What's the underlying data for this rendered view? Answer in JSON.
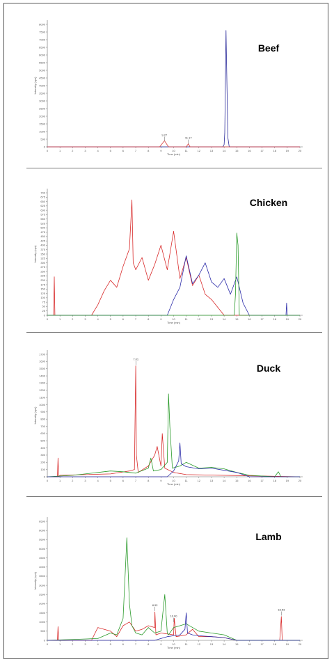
{
  "chart_data": [
    {
      "type": "line",
      "title": "Beef",
      "xlabel": "Time (min)",
      "ylabel": "Intensity (cps)",
      "xlim": [
        0,
        20
      ],
      "ylim": [
        0,
        8000
      ],
      "xticks": [
        "0",
        "1",
        "2",
        "3",
        "4",
        "5",
        "6",
        "7",
        "8",
        "9",
        "10",
        "11",
        "12",
        "13",
        "14",
        "15",
        "16",
        "17",
        "18",
        "19",
        "20"
      ],
      "yticks": [
        "0",
        "500",
        "1000",
        "1500",
        "2000",
        "2500",
        "3000",
        "3500",
        "4000",
        "4500",
        "5000",
        "5500",
        "6000",
        "6500",
        "7000",
        "7500",
        "8000"
      ],
      "annotations": [
        {
          "x": 9.27,
          "y": 380,
          "label": "9.27"
        },
        {
          "x": 11.17,
          "y": 200,
          "label": "11.17"
        }
      ],
      "series": [
        {
          "color": "#2a2a9a",
          "x": [
            0,
            13.9,
            14.0,
            14.05,
            14.1,
            14.15,
            14.2,
            14.3,
            14.4,
            20
          ],
          "y": [
            0,
            0,
            150,
            900,
            4200,
            7600,
            5200,
            600,
            0,
            0
          ]
        },
        {
          "color": "#d83a3a",
          "x": [
            0,
            8.9,
            9.27,
            9.6,
            11.0,
            11.17,
            11.3,
            20
          ],
          "y": [
            0,
            0,
            400,
            0,
            0,
            200,
            0,
            0
          ]
        }
      ]
    },
    {
      "type": "line",
      "title": "Chicken",
      "xlabel": "Time (min)",
      "ylabel": "Intensity (cps)",
      "xlim": [
        0,
        20
      ],
      "ylim": [
        0,
        700
      ],
      "xticks": [
        "0",
        "1",
        "2",
        "3",
        "4",
        "5",
        "6",
        "7",
        "8",
        "9",
        "10",
        "11",
        "12",
        "13",
        "14",
        "15",
        "16",
        "17",
        "18",
        "19",
        "20"
      ],
      "yticks": [
        "0",
        "25",
        "50",
        "75",
        "100",
        "125",
        "150",
        "175",
        "200",
        "225",
        "250",
        "275",
        "300",
        "325",
        "350",
        "375",
        "400",
        "425",
        "450",
        "475",
        "500",
        "525",
        "550",
        "575",
        "600",
        "625",
        "650",
        "675",
        "700"
      ],
      "series": [
        {
          "color": "#d82a2a",
          "x": [
            0,
            0.5,
            0.55,
            0.6,
            1.0,
            3.5,
            4.0,
            4.5,
            5.0,
            5.5,
            6.0,
            6.5,
            6.7,
            6.8,
            7.0,
            7.5,
            8.0,
            8.5,
            9.0,
            9.5,
            10.0,
            10.5,
            11.0,
            11.5,
            12.0,
            12.5,
            13.0,
            14.0,
            20
          ],
          "y": [
            0,
            0,
            220,
            0,
            0,
            0,
            60,
            140,
            200,
            160,
            280,
            380,
            660,
            300,
            260,
            330,
            200,
            290,
            400,
            260,
            480,
            210,
            330,
            170,
            230,
            120,
            90,
            0,
            0
          ]
        },
        {
          "color": "#2a2aa8",
          "x": [
            0,
            9.5,
            10.0,
            10.5,
            11.0,
            11.5,
            12.0,
            12.5,
            13.0,
            13.5,
            14.0,
            14.5,
            15.0,
            15.5,
            16.0,
            18.9,
            18.95,
            19.0,
            20
          ],
          "y": [
            0,
            0,
            90,
            160,
            340,
            180,
            230,
            300,
            190,
            160,
            210,
            120,
            220,
            70,
            0,
            0,
            70,
            0,
            0
          ]
        },
        {
          "color": "#2a9a2a",
          "x": [
            0,
            14.8,
            14.9,
            15.0,
            15.1,
            15.2,
            20
          ],
          "y": [
            0,
            0,
            120,
            470,
            400,
            0,
            0
          ]
        }
      ]
    },
    {
      "type": "line",
      "title": "Duck",
      "xlabel": "Time (min)",
      "ylabel": "Intensity (cps)",
      "xlim": [
        0,
        20
      ],
      "ylim": [
        0,
        1700
      ],
      "xticks": [
        "0",
        "1",
        "2",
        "3",
        "4",
        "5",
        "6",
        "7",
        "8",
        "9",
        "10",
        "11",
        "12",
        "13",
        "14",
        "15",
        "16",
        "17",
        "18",
        "19",
        "20"
      ],
      "yticks": [
        "0",
        "100",
        "200",
        "300",
        "400",
        "500",
        "600",
        "700",
        "800",
        "900",
        "1000",
        "1100",
        "1200",
        "1300",
        "1400",
        "1500",
        "1600",
        "1700"
      ],
      "annotations": [
        {
          "x": 7.01,
          "y": 1550,
          "label": "7.01"
        }
      ],
      "series": [
        {
          "color": "#d82a2a",
          "x": [
            0,
            0.8,
            0.85,
            0.9,
            1.0,
            5.0,
            6.5,
            6.9,
            7.0,
            7.05,
            7.2,
            8.0,
            8.5,
            8.7,
            9.0,
            9.1,
            9.3,
            10.0,
            11.0,
            20
          ],
          "y": [
            0,
            0,
            260,
            0,
            20,
            40,
            80,
            100,
            1540,
            300,
            60,
            150,
            300,
            420,
            150,
            600,
            120,
            60,
            30,
            0
          ]
        },
        {
          "color": "#2a9a2a",
          "x": [
            0,
            2,
            3,
            4,
            5,
            6,
            7,
            8,
            8.2,
            8.4,
            9.0,
            9.5,
            9.6,
            9.7,
            9.9,
            10.5,
            11.0,
            12.0,
            13.0,
            14.0,
            15.0,
            16.0,
            18.0,
            18.3,
            18.5,
            20
          ],
          "y": [
            0,
            20,
            40,
            60,
            80,
            70,
            50,
            120,
            260,
            80,
            100,
            200,
            1150,
            700,
            120,
            150,
            200,
            120,
            130,
            110,
            60,
            20,
            0,
            70,
            0,
            0
          ]
        },
        {
          "color": "#2a2aa8",
          "x": [
            0,
            9.5,
            10.0,
            10.4,
            10.5,
            10.6,
            11.0,
            12.0,
            13.0,
            14.0,
            15.0,
            16.0,
            20
          ],
          "y": [
            0,
            0,
            80,
            220,
            470,
            180,
            140,
            110,
            120,
            90,
            60,
            0,
            0
          ]
        }
      ]
    },
    {
      "type": "line",
      "title": "Lamb",
      "xlabel": "Time (min)",
      "ylabel": "Intensity (cps)",
      "xlim": [
        0,
        20
      ],
      "ylim": [
        0,
        6500
      ],
      "xticks": [
        "0",
        "1",
        "2",
        "3",
        "4",
        "5",
        "6",
        "7",
        "8",
        "9",
        "10",
        "11",
        "12",
        "13",
        "14",
        "15",
        "16",
        "17",
        "18",
        "19",
        "20"
      ],
      "yticks": [
        "0",
        "500",
        "1000",
        "1500",
        "2000",
        "2500",
        "3000",
        "3500",
        "4000",
        "4500",
        "5000",
        "5500",
        "6000",
        "6500"
      ],
      "annotations": [
        {
          "x": 8.52,
          "y": 1600,
          "label": "8.52"
        },
        {
          "x": 10.0,
          "y": 1000,
          "label": "10.00"
        },
        {
          "x": 18.53,
          "y": 1350,
          "label": "18.53"
        }
      ],
      "series": [
        {
          "color": "#d82a2a",
          "x": [
            0,
            0.8,
            0.85,
            0.9,
            1.0,
            3.5,
            4.0,
            5.0,
            5.5,
            6.0,
            6.5,
            7.0,
            7.5,
            8.0,
            8.5,
            8.52,
            8.6,
            9.0,
            10.0,
            10.05,
            10.2,
            11.0,
            11.5,
            12.0,
            13.0,
            14.0,
            15.0,
            18.4,
            18.53,
            18.6,
            20
          ],
          "y": [
            0,
            0,
            750,
            0,
            0,
            0,
            700,
            500,
            200,
            800,
            1000,
            500,
            600,
            800,
            700,
            1550,
            300,
            400,
            300,
            1200,
            200,
            300,
            600,
            200,
            200,
            150,
            0,
            0,
            1300,
            0,
            0
          ]
        },
        {
          "color": "#2a9a2a",
          "x": [
            0,
            4,
            5,
            5.5,
            6.0,
            6.3,
            6.5,
            6.7,
            7.0,
            7.5,
            8.0,
            8.5,
            9.0,
            9.3,
            9.5,
            9.6,
            10.0,
            10.5,
            11.0,
            12.0,
            13.0,
            14.0,
            15.0,
            20
          ],
          "y": [
            0,
            100,
            400,
            300,
            1200,
            5600,
            2000,
            800,
            400,
            300,
            700,
            400,
            500,
            2500,
            400,
            300,
            700,
            800,
            900,
            500,
            400,
            300,
            0,
            0
          ]
        },
        {
          "color": "#2a2aa8",
          "x": [
            0,
            8.5,
            9.0,
            9.5,
            10.0,
            10.5,
            10.9,
            11.0,
            11.1,
            11.5,
            12.0,
            13.0,
            14.0,
            15.0,
            20
          ],
          "y": [
            0,
            0,
            100,
            200,
            250,
            300,
            600,
            1500,
            400,
            300,
            250,
            200,
            150,
            0,
            0
          ]
        }
      ]
    }
  ]
}
